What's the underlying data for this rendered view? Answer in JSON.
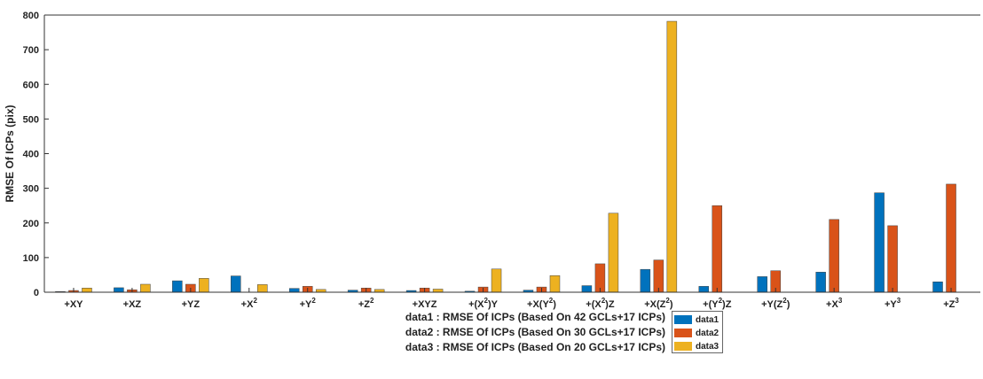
{
  "chart_data": {
    "type": "bar",
    "title": "",
    "xlabel": "",
    "ylabel": "RMSE Of ICPs (pix)",
    "ylim": [
      0,
      800
    ],
    "yticks": [
      0,
      100,
      200,
      300,
      400,
      500,
      600,
      700,
      800
    ],
    "grid": false,
    "legend_position": "bottom-center",
    "categories": [
      {
        "base": "+XY",
        "sup": ""
      },
      {
        "base": "+XZ",
        "sup": ""
      },
      {
        "base": "+YZ",
        "sup": ""
      },
      {
        "base": "+X",
        "sup": "2"
      },
      {
        "base": "+Y",
        "sup": "2"
      },
      {
        "base": "+Z",
        "sup": "2"
      },
      {
        "base": "+XYZ",
        "sup": ""
      },
      {
        "base": "+(X",
        "sup": "2",
        "tail": ")Y"
      },
      {
        "base": "+X(Y",
        "sup": "2",
        "tail": ")"
      },
      {
        "base": "+(X",
        "sup": "2",
        "tail": ")Z"
      },
      {
        "base": "+X(Z",
        "sup": "2",
        "tail": ")"
      },
      {
        "base": "+(Y",
        "sup": "2",
        "tail": ")Z"
      },
      {
        "base": "+Y(Z",
        "sup": "2",
        "tail": ")"
      },
      {
        "base": "+X",
        "sup": "3"
      },
      {
        "base": "+Y",
        "sup": "3"
      },
      {
        "base": "+Z",
        "sup": "3"
      }
    ],
    "series": [
      {
        "name": "data1",
        "color": "#0072BD",
        "values": [
          2,
          13,
          33,
          47,
          11,
          6,
          5,
          3,
          6,
          19,
          66,
          17,
          45,
          58,
          287,
          30
        ]
      },
      {
        "name": "data2",
        "color": "#D95319",
        "values": [
          5,
          7,
          23,
          0,
          17,
          12,
          12,
          15,
          15,
          82,
          93,
          250,
          62,
          210,
          192,
          312
        ]
      },
      {
        "name": "data3",
        "color": "#EDB120",
        "values": [
          12,
          23,
          40,
          22,
          8,
          8,
          9,
          67,
          48,
          228,
          782,
          0,
          0,
          0,
          0,
          0
        ]
      }
    ],
    "legend_notes": [
      "data1 : RMSE Of ICPs (Based On 42 GCLs+17 ICPs)",
      "data2 : RMSE Of ICPs (Based On 30 GCLs+17 ICPs)",
      "data3 : RMSE Of ICPs (Based On 20 GCLs+17 ICPs)"
    ]
  }
}
